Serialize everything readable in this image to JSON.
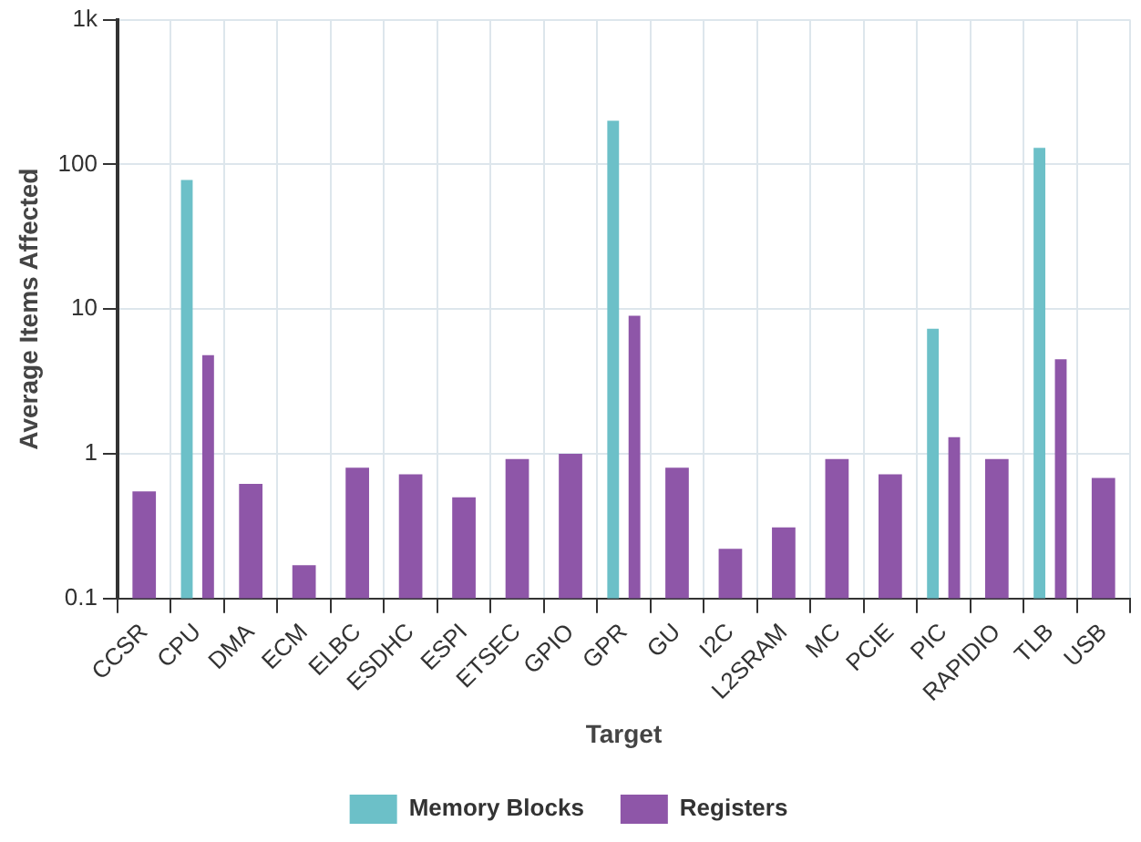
{
  "chart_data": {
    "type": "bar",
    "xlabel": "Target",
    "ylabel": "Average Items Affected",
    "categories": [
      "CCSR",
      "CPU",
      "DMA",
      "ECM",
      "ELBC",
      "ESDHC",
      "ESPI",
      "ETSEC",
      "GPIO",
      "GPR",
      "GU",
      "I2C",
      "L2SRAM",
      "MC",
      "PCIE",
      "PIC",
      "RAPIDIO",
      "TLB",
      "USB"
    ],
    "series": [
      {
        "name": "Memory Blocks",
        "color": "#6cc0c8",
        "values": [
          null,
          78,
          null,
          null,
          null,
          null,
          null,
          null,
          null,
          200,
          null,
          null,
          null,
          null,
          null,
          7.3,
          null,
          130,
          null
        ]
      },
      {
        "name": "Registers",
        "color": "#8e56a8",
        "values": [
          0.55,
          4.8,
          0.62,
          0.17,
          0.8,
          0.72,
          0.5,
          0.92,
          1.0,
          9,
          0.8,
          0.22,
          0.31,
          0.92,
          0.72,
          1.3,
          0.92,
          4.5,
          0.68
        ]
      }
    ],
    "log": true,
    "ylim": [
      0.1,
      1000
    ],
    "yticks": [
      0.1,
      1,
      10,
      100,
      {
        "value": 1000,
        "label": "1k"
      }
    ],
    "grid": true,
    "legend": "bottom"
  }
}
